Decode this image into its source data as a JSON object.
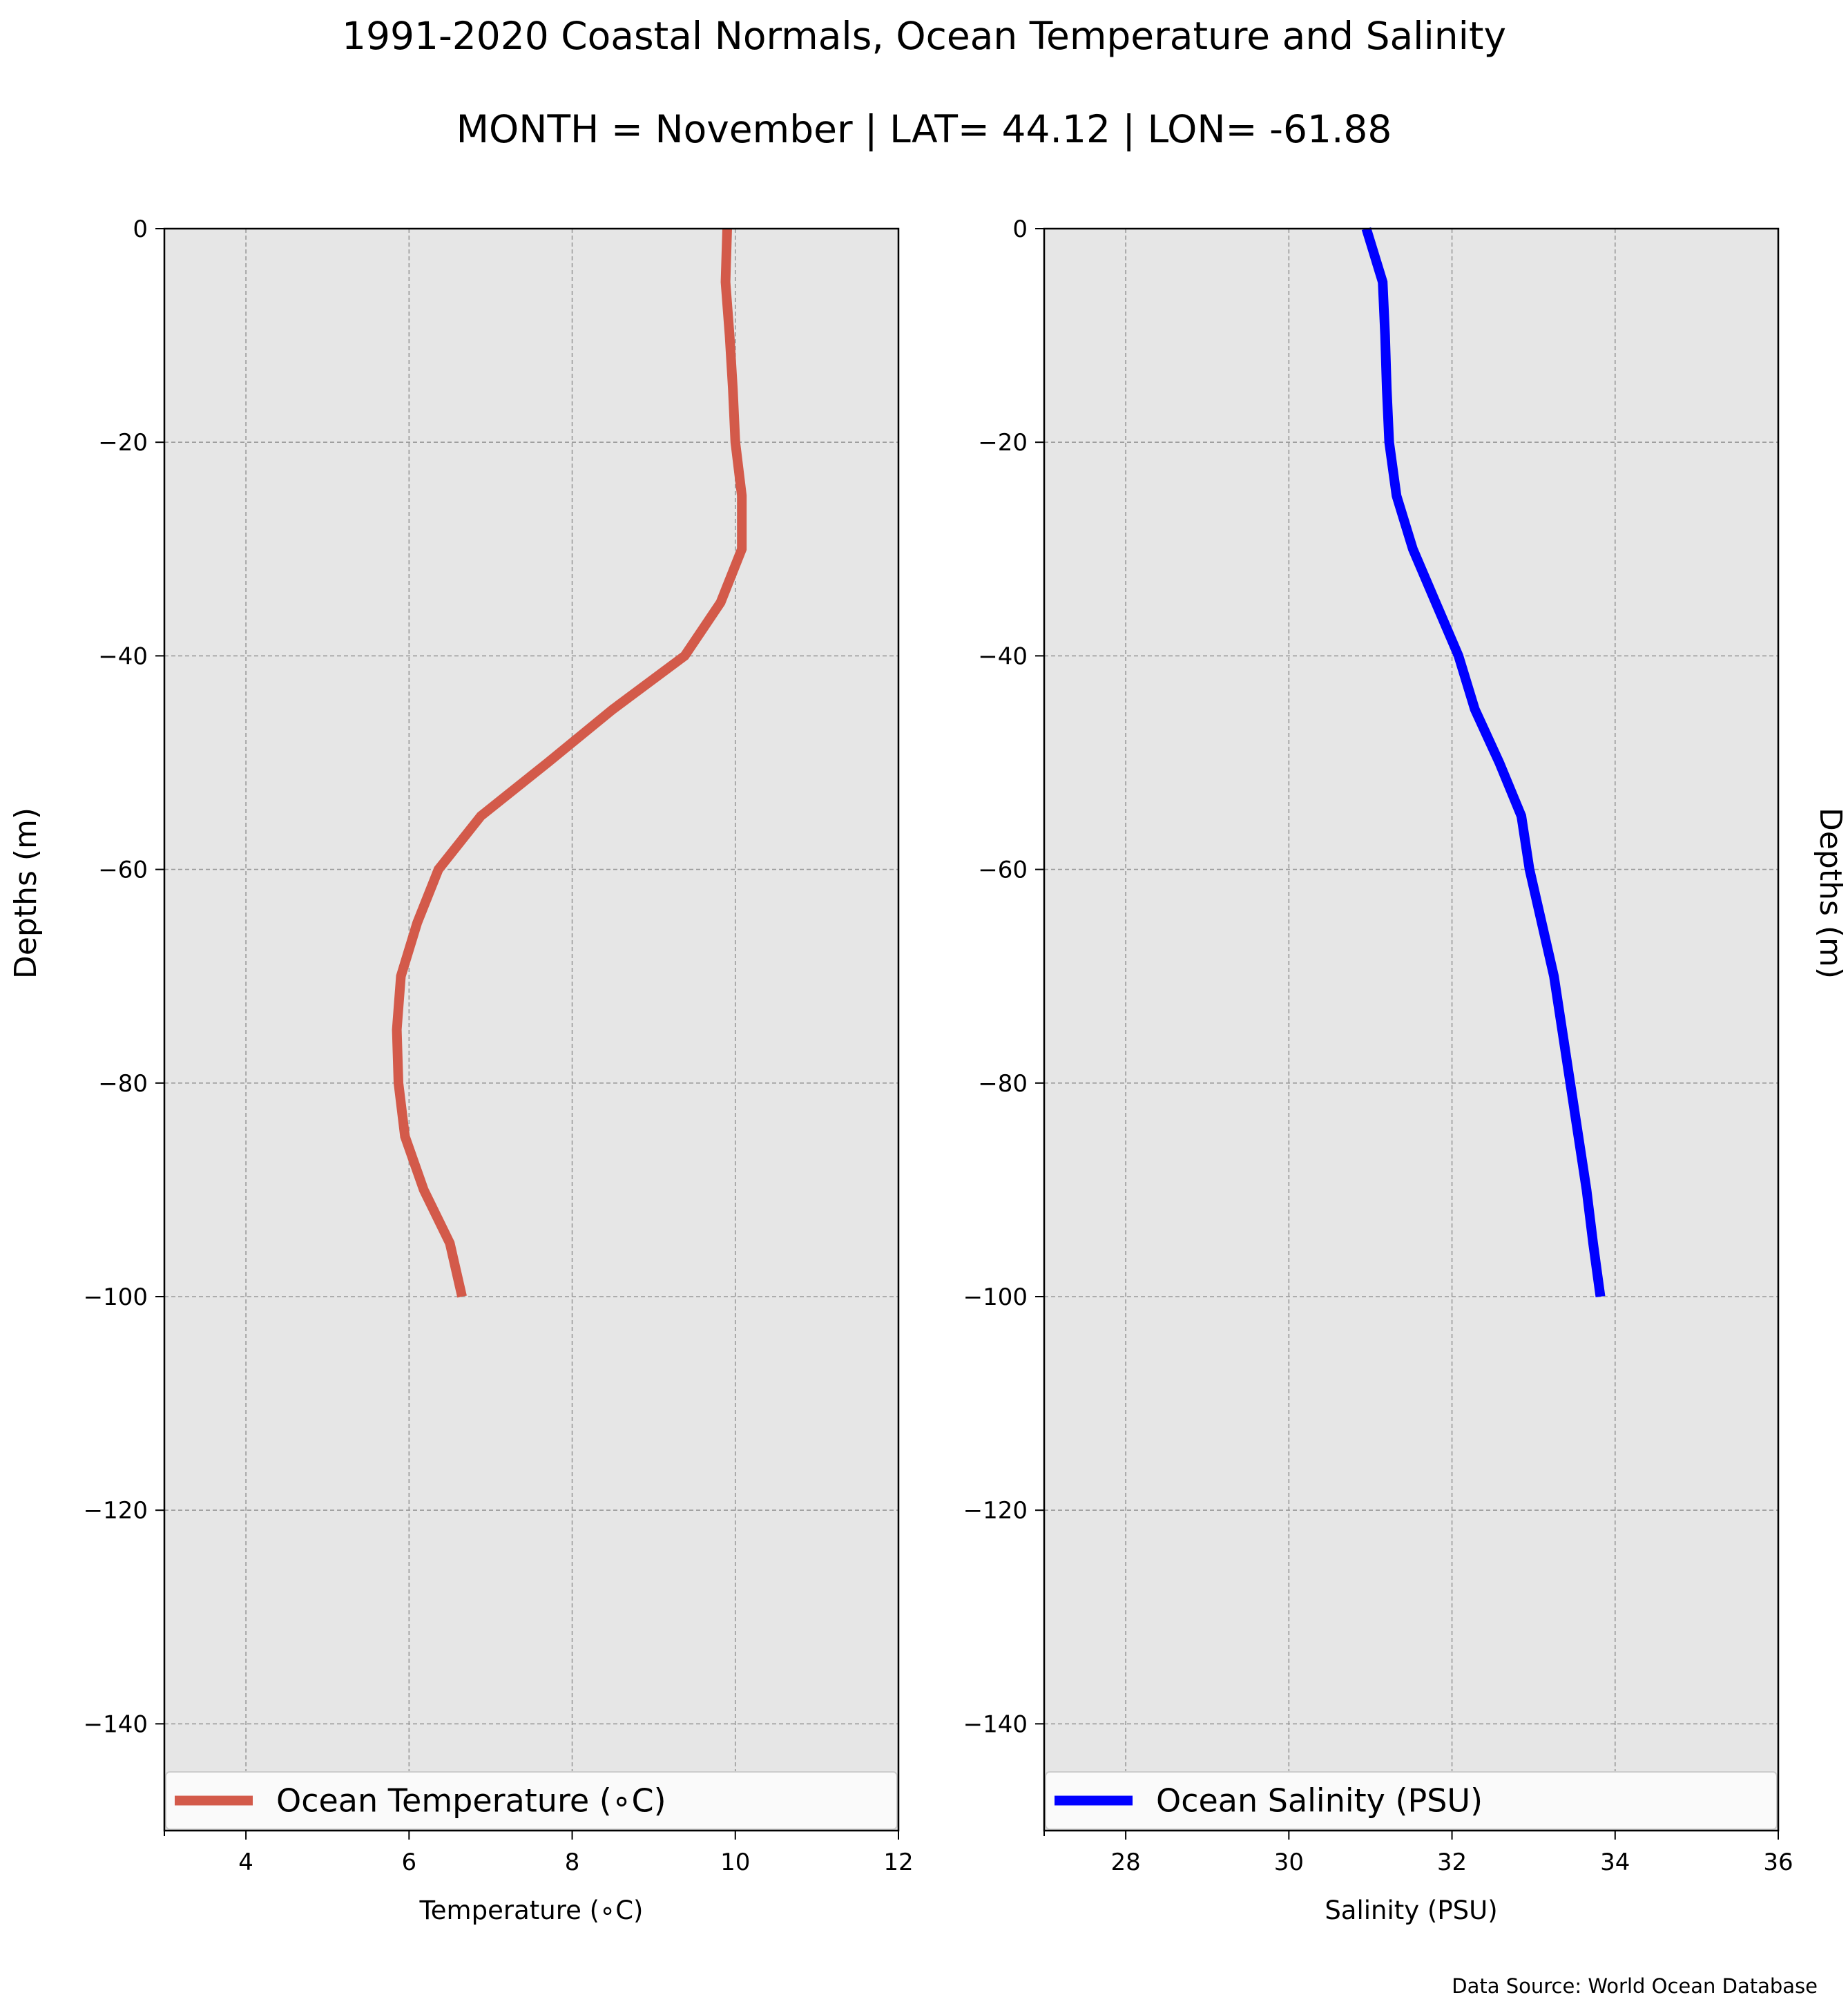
{
  "title": "1991-2020 Coastal Normals, Ocean Temperature and Salinity",
  "subtitle": "MONTH = November | LAT= 44.12 | LON= -61.88",
  "credit": "Data Source: World Ocean Database",
  "colors": {
    "plot_background": "#e6e6e6",
    "grid": "#9a9a9a",
    "temperature_line": "#d35a4a",
    "salinity_line": "#0000ff"
  },
  "chart_data": [
    {
      "type": "line",
      "xlabel": "Temperature (∘C)",
      "ylabel": "Depths (m)",
      "xlim": [
        3,
        12
      ],
      "ylim": [
        -150,
        0
      ],
      "xticks": [
        4,
        6,
        8,
        10,
        12
      ],
      "yticks": [
        0,
        -20,
        -40,
        -60,
        -80,
        -100,
        -120,
        -140
      ],
      "grid": true,
      "legend_position": "bottom",
      "series": [
        {
          "name": "Ocean Temperature (∘C)",
          "color": "#d35a4a",
          "x": [
            9.9,
            9.88,
            9.93,
            9.97,
            10.0,
            10.08,
            10.08,
            9.82,
            9.38,
            8.5,
            7.7,
            6.88,
            6.36,
            6.1,
            5.9,
            5.85,
            5.87,
            5.95,
            6.18,
            6.5,
            6.65
          ],
          "y": [
            0,
            -5,
            -10,
            -15,
            -20,
            -25,
            -30,
            -35,
            -40,
            -45,
            -50,
            -55,
            -60,
            -65,
            -70,
            -75,
            -80,
            -85,
            -90,
            -95,
            -100
          ]
        }
      ]
    },
    {
      "type": "line",
      "xlabel": "Salinity (PSU)",
      "ylabel": "Depths (m)",
      "xlim": [
        27,
        36
      ],
      "ylim": [
        -150,
        0
      ],
      "xticks": [
        28,
        30,
        32,
        34,
        36
      ],
      "yticks": [
        0,
        -20,
        -40,
        -60,
        -80,
        -100,
        -120,
        -140
      ],
      "grid": true,
      "legend_position": "bottom",
      "series": [
        {
          "name": "Ocean Salinity (PSU)",
          "color": "#0000ff",
          "x": [
            30.95,
            31.15,
            31.18,
            31.2,
            31.23,
            31.32,
            31.52,
            31.8,
            32.08,
            32.28,
            32.58,
            32.85,
            32.95,
            33.1,
            33.25,
            33.35,
            33.45,
            33.55,
            33.65,
            33.73,
            33.82
          ],
          "y": [
            0,
            -5,
            -10,
            -15,
            -20,
            -25,
            -30,
            -35,
            -40,
            -45,
            -50,
            -55,
            -60,
            -65,
            -70,
            -75,
            -80,
            -85,
            -90,
            -95,
            -100
          ]
        }
      ]
    }
  ]
}
